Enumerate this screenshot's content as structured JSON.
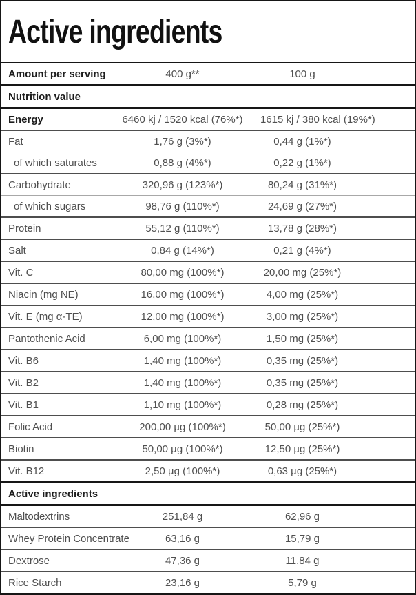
{
  "title": "Active ingredients",
  "table": {
    "header": {
      "label": "Amount per serving",
      "serving": "400 g**",
      "per100": "100 g"
    },
    "rows": [
      {
        "label": "Nutrition value",
        "type": "section"
      },
      {
        "label": "Energy",
        "bold": true,
        "serving": "6460 kj / 1520 kcal (76%*)",
        "per100": "1615 kj / 380 kcal (19%*)"
      },
      {
        "label": "Fat",
        "serving": "1,76 g (3%*)",
        "per100": "0,44 g (1%*)"
      },
      {
        "label": "of which saturates",
        "sub": true,
        "serving": "0,88 g (4%*)",
        "per100": "0,22 g (1%*)"
      },
      {
        "label": "Carbohydrate",
        "serving": "320,96 g (123%*)",
        "per100": "80,24 g (31%*)"
      },
      {
        "label": "of which sugars",
        "sub": true,
        "serving": "98,76 g (110%*)",
        "per100": "24,69 g (27%*)"
      },
      {
        "label": "Protein",
        "serving": "55,12 g (110%*)",
        "per100": "13,78 g (28%*)"
      },
      {
        "label": "Salt",
        "serving": "0,84 g (14%*)",
        "per100": "0,21 g (4%*)"
      },
      {
        "label": "Vit. C",
        "serving": "80,00 mg (100%*)",
        "per100": "20,00 mg (25%*)"
      },
      {
        "label": "Niacin (mg NE)",
        "serving": "16,00 mg (100%*)",
        "per100": "4,00 mg (25%*)"
      },
      {
        "label": "Vit. E (mg α-TE)",
        "serving": "12,00 mg (100%*)",
        "per100": "3,00 mg (25%*)"
      },
      {
        "label": "Pantothenic Acid",
        "serving": "6,00 mg (100%*)",
        "per100": "1,50 mg (25%*)"
      },
      {
        "label": "Vit. B6",
        "serving": "1,40 mg (100%*)",
        "per100": "0,35 mg (25%*)"
      },
      {
        "label": "Vit. B2",
        "serving": "1,40 mg (100%*)",
        "per100": "0,35 mg (25%*)"
      },
      {
        "label": "Vit. B1",
        "serving": "1,10 mg (100%*)",
        "per100": "0,28 mg (25%*)"
      },
      {
        "label": "Folic Acid",
        "serving": "200,00 µg (100%*)",
        "per100": "50,00 µg (25%*)"
      },
      {
        "label": "Biotin",
        "serving": "50,00 µg (100%*)",
        "per100": "12,50 µg (25%*)"
      },
      {
        "label": "Vit. B12",
        "serving": "2,50 µg (100%*)",
        "per100": "0,63 µg (25%*)"
      },
      {
        "label": "Active ingredients",
        "type": "section"
      },
      {
        "label": "Maltodextrins",
        "serving": "251,84 g",
        "per100": "62,96 g"
      },
      {
        "label": "Whey Protein Concentrate",
        "serving": "63,16 g",
        "per100": "15,79 g"
      },
      {
        "label": "Dextrose",
        "serving": "47,36 g",
        "per100": "11,84 g"
      },
      {
        "label": "Rice Starch",
        "serving": "23,16 g",
        "per100": "5,79 g"
      }
    ]
  },
  "colors": {
    "border": "#161616",
    "header_text": "#1d1d1d",
    "body_text": "#4f4f4f",
    "separator": "#4e4e4e",
    "sub_separator": "#a8a8a8",
    "background": "#ffffff"
  }
}
